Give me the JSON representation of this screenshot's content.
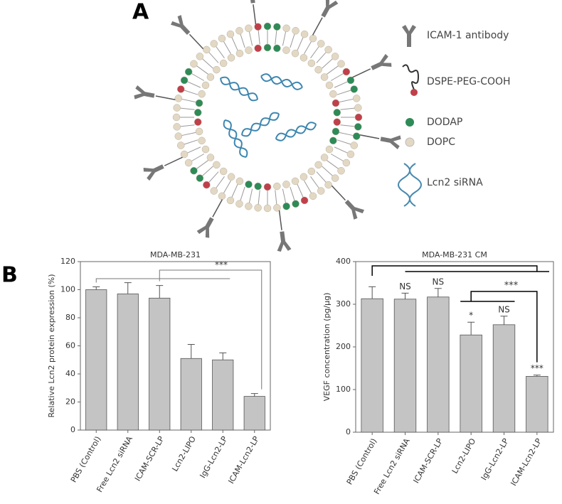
{
  "panels": [
    "A",
    "B"
  ],
  "diagram": {
    "legend": [
      "ICAM-1 antibody",
      "DSPE-PEG-COOH",
      "DODAP",
      "DOPC",
      "Lcn2 siRNA"
    ]
  },
  "chart_data": [
    {
      "type": "bar",
      "title": "MDA-MB-231",
      "y_label": "Relative Lcn2 protein expression (%)",
      "categories": [
        "PBS (Control)",
        "Free Lcn2 siRNA",
        "ICAM-SCR-LP",
        "Lcn2-LIPO",
        "IgG-Lcn2-LP",
        "ICAM-Lcn2-LP"
      ],
      "values": [
        100,
        97,
        94,
        51,
        50,
        24
      ],
      "errors": [
        2,
        8,
        9,
        10,
        5,
        2
      ],
      "color": "#c4c4c4",
      "ylim": [
        0,
        120
      ],
      "yticks": [
        0,
        20,
        40,
        60,
        80,
        100,
        120
      ],
      "bracket_label": "***"
    },
    {
      "type": "bar",
      "title": "MDA-MB-231 CM",
      "y_label": "VEGF concentration (pg/μg)",
      "categories": [
        "PBS (Control)",
        "Free Lcn2 siRNA",
        "ICAM-SCR-LP",
        "Lcn2-LIPO",
        "IgG-Lcn2-LP",
        "ICAM-Lcn2-LP"
      ],
      "values": [
        313,
        312,
        317,
        228,
        252,
        131
      ],
      "errors": [
        28,
        14,
        20,
        30,
        20,
        3
      ],
      "color": "#c4c4c4",
      "annotations": [
        null,
        "NS",
        "NS",
        "*",
        "NS",
        "***"
      ],
      "ylim": [
        0,
        400
      ],
      "yticks": [
        0,
        100,
        200,
        300,
        400
      ],
      "bracket_label": "***"
    }
  ]
}
